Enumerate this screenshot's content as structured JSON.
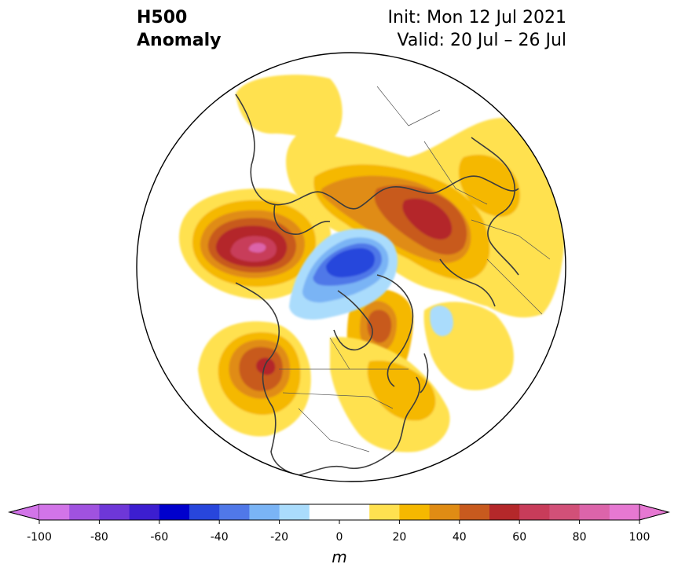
{
  "title": {
    "left_line1": "H500",
    "left_line2": "Anomaly",
    "right_line1": "Init: Mon 12 Jul 2021",
    "right_line2": "Valid: 20 Jul – 26 Jul"
  },
  "colorbar": {
    "label": "m",
    "min": -100,
    "max": 100,
    "step": 10,
    "extend": "both",
    "ticks": [
      -100,
      -80,
      -60,
      -40,
      -20,
      0,
      20,
      40,
      60,
      80,
      100
    ],
    "tick_labels": [
      "-100",
      "-80",
      "-60",
      "-40",
      "-20",
      "0",
      "20",
      "40",
      "60",
      "80",
      "100"
    ],
    "colors": [
      "#d274e8",
      "#a052e0",
      "#6e37d8",
      "#3c1ed0",
      "#0000cc",
      "#2846dc",
      "#5078e8",
      "#7ab4f5",
      "#aadcfc",
      "#ffffff",
      "#ffffff",
      "#ffe150",
      "#f5b800",
      "#e08c14",
      "#c85a1e",
      "#b4282a",
      "#c83c5a",
      "#d25078",
      "#dc64aa",
      "#e678d2"
    ],
    "under_color": "#d274e8",
    "over_color": "#e678d2"
  },
  "map": {
    "projection": "north-polar-stereographic",
    "land_color": "#ffffff",
    "coast_color": "#3c3c3c",
    "anomaly_centers": [
      {
        "region": "Siberia / Arctic Russia",
        "value": 70
      },
      {
        "region": "Scandinavia / Northern Europe",
        "value": 60
      },
      {
        "region": "Greenland / Baffin Bay",
        "value": 50
      },
      {
        "region": "Pacific Northwest",
        "value": 60
      },
      {
        "region": "Arctic Ocean (Beaufort)",
        "value": -50
      },
      {
        "region": "North Atlantic",
        "value": -10
      }
    ]
  }
}
